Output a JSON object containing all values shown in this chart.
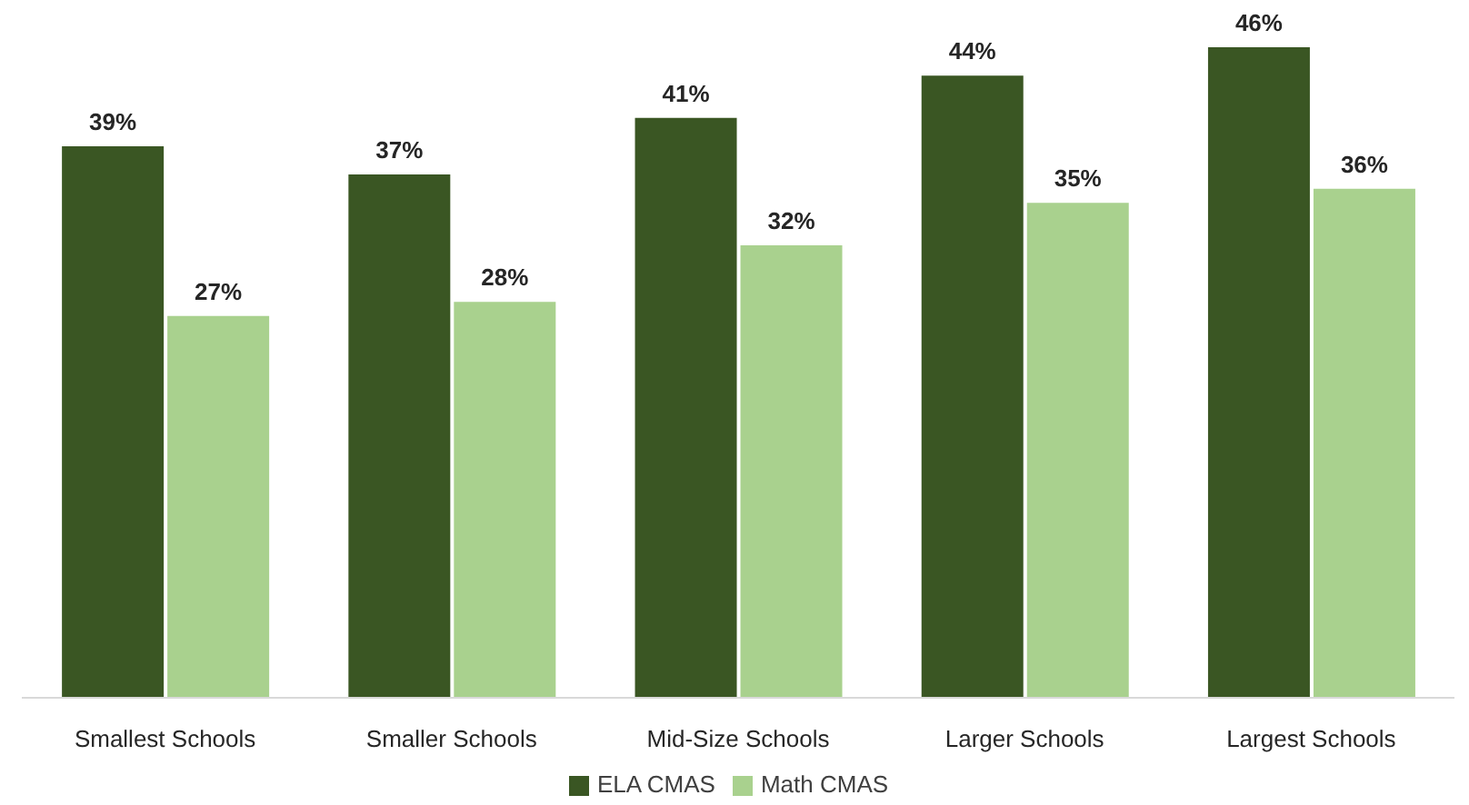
{
  "chart_data": {
    "type": "bar",
    "categories": [
      "Smallest Schools",
      "Smaller Schools",
      "Mid-Size Schools",
      "Larger Schools",
      "Largest Schools"
    ],
    "series": [
      {
        "name": "ELA CMAS",
        "color": "#3a5623",
        "values": [
          39,
          37,
          41,
          44,
          46
        ],
        "value_labels": [
          "39%",
          "37%",
          "41%",
          "44%",
          "46%"
        ]
      },
      {
        "name": "Math CMAS",
        "color": "#a9d18e",
        "values": [
          27,
          28,
          32,
          35,
          36
        ],
        "value_labels": [
          "27%",
          "28%",
          "32%",
          "35%",
          "36%"
        ]
      }
    ],
    "legend": "bottom",
    "tick_labels": "x"
  }
}
